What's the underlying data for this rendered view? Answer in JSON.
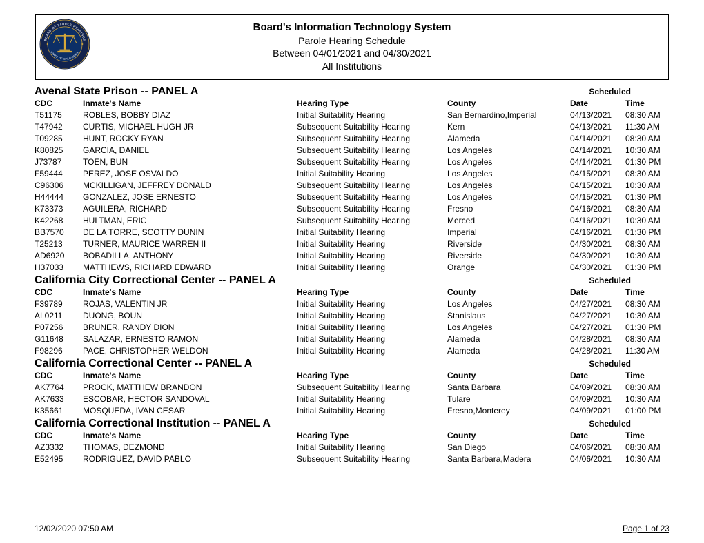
{
  "header": {
    "title": "Board's Information Technology System",
    "line1": "Parole Hearing Schedule",
    "line2": "Between 04/01/2021 and 04/30/2021",
    "line3": "All Institutions",
    "seal": {
      "outer_color": "#0b2a5b",
      "ring_color": "#12234e",
      "ring_text_top": "BOARD OF PAROLE HEARINGS",
      "ring_text_bottom": "STATE OF CALIFORNIA",
      "inner_color": "#0c2f66",
      "gold": "#d6a93a",
      "text_color": "#ffffff"
    }
  },
  "columns": {
    "cdc": "CDC",
    "name": "Inmate's Name",
    "type": "Hearing Type",
    "county": "County",
    "date": "Date",
    "time": "Time",
    "scheduled": "Scheduled"
  },
  "sections": [
    {
      "title": "Avenal State Prison -- PANEL A",
      "rows": [
        {
          "cdc": "T51175",
          "name": "ROBLES, BOBBY DIAZ",
          "type": "Initial Suitability Hearing",
          "county": "San Bernardino,Imperial",
          "date": "04/13/2021",
          "time": "08:30 AM"
        },
        {
          "cdc": "T47942",
          "name": "CURTIS, MICHAEL HUGH JR",
          "type": "Subsequent Suitability Hearing",
          "county": "Kern",
          "date": "04/13/2021",
          "time": "11:30 AM"
        },
        {
          "cdc": "T09285",
          "name": "HUNT, ROCKY RYAN",
          "type": "Subsequent Suitability Hearing",
          "county": "Alameda",
          "date": "04/14/2021",
          "time": "08:30 AM"
        },
        {
          "cdc": "K80825",
          "name": "GARCIA, DANIEL",
          "type": "Subsequent Suitability Hearing",
          "county": "Los Angeles",
          "date": "04/14/2021",
          "time": "10:30 AM"
        },
        {
          "cdc": "J73787",
          "name": "TOEN, BUN",
          "type": "Subsequent Suitability Hearing",
          "county": "Los Angeles",
          "date": "04/14/2021",
          "time": "01:30 PM"
        },
        {
          "cdc": "F59444",
          "name": "PEREZ, JOSE OSVALDO",
          "type": "Initial Suitability Hearing",
          "county": "Los Angeles",
          "date": "04/15/2021",
          "time": "08:30 AM"
        },
        {
          "cdc": "C96306",
          "name": "MCKILLIGAN, JEFFREY DONALD",
          "type": "Subsequent Suitability Hearing",
          "county": "Los Angeles",
          "date": "04/15/2021",
          "time": "10:30 AM"
        },
        {
          "cdc": "H44444",
          "name": "GONZALEZ, JOSE ERNESTO",
          "type": "Subsequent Suitability Hearing",
          "county": "Los Angeles",
          "date": "04/15/2021",
          "time": "01:30 PM"
        },
        {
          "cdc": "K73373",
          "name": "AGUILERA, RICHARD",
          "type": "Subsequent Suitability Hearing",
          "county": "Fresno",
          "date": "04/16/2021",
          "time": "08:30 AM"
        },
        {
          "cdc": "K42268",
          "name": "HULTMAN, ERIC",
          "type": "Subsequent Suitability Hearing",
          "county": "Merced",
          "date": "04/16/2021",
          "time": "10:30 AM"
        },
        {
          "cdc": "BB7570",
          "name": "DE LA TORRE, SCOTTY DUNIN",
          "type": "Initial Suitability Hearing",
          "county": "Imperial",
          "date": "04/16/2021",
          "time": "01:30 PM"
        },
        {
          "cdc": "T25213",
          "name": "TURNER, MAURICE WARREN II",
          "type": "Initial Suitability Hearing",
          "county": "Riverside",
          "date": "04/30/2021",
          "time": "08:30 AM"
        },
        {
          "cdc": "AD6920",
          "name": "BOBADILLA, ANTHONY",
          "type": "Initial Suitability Hearing",
          "county": "Riverside",
          "date": "04/30/2021",
          "time": "10:30 AM"
        },
        {
          "cdc": "H37033",
          "name": "MATTHEWS, RICHARD EDWARD",
          "type": "Initial Suitability Hearing",
          "county": "Orange",
          "date": "04/30/2021",
          "time": "01:30 PM"
        }
      ]
    },
    {
      "title": "California City Correctional Center -- PANEL A",
      "rows": [
        {
          "cdc": "F39789",
          "name": "ROJAS, VALENTIN JR",
          "type": "Initial Suitability Hearing",
          "county": "Los Angeles",
          "date": "04/27/2021",
          "time": "08:30 AM"
        },
        {
          "cdc": "AL0211",
          "name": "DUONG, BOUN",
          "type": "Initial Suitability Hearing",
          "county": "Stanislaus",
          "date": "04/27/2021",
          "time": "10:30 AM"
        },
        {
          "cdc": "P07256",
          "name": "BRUNER, RANDY DION",
          "type": "Initial Suitability Hearing",
          "county": "Los Angeles",
          "date": "04/27/2021",
          "time": "01:30 PM"
        },
        {
          "cdc": "G11648",
          "name": "SALAZAR, ERNESTO RAMON",
          "type": "Initial Suitability Hearing",
          "county": "Alameda",
          "date": "04/28/2021",
          "time": "08:30 AM"
        },
        {
          "cdc": "F98296",
          "name": "PACE, CHRISTOPHER WELDON",
          "type": "Initial Suitability Hearing",
          "county": "Alameda",
          "date": "04/28/2021",
          "time": "11:30 AM"
        }
      ]
    },
    {
      "title": "California Correctional Center -- PANEL A",
      "rows": [
        {
          "cdc": "AK7764",
          "name": "PROCK, MATTHEW BRANDON",
          "type": "Subsequent Suitability Hearing",
          "county": "Santa Barbara",
          "date": "04/09/2021",
          "time": "08:30 AM"
        },
        {
          "cdc": "AK7633",
          "name": "ESCOBAR, HECTOR SANDOVAL",
          "type": "Initial Suitability Hearing",
          "county": "Tulare",
          "date": "04/09/2021",
          "time": "10:30 AM"
        },
        {
          "cdc": "K35661",
          "name": "MOSQUEDA, IVAN CESAR",
          "type": "Initial Suitability Hearing",
          "county": "Fresno,Monterey",
          "date": "04/09/2021",
          "time": "01:00 PM"
        }
      ]
    },
    {
      "title": "California Correctional Institution -- PANEL A",
      "rows": [
        {
          "cdc": "AZ3332",
          "name": "THOMAS, DEZMOND",
          "type": "Initial Suitability Hearing",
          "county": "San Diego",
          "date": "04/06/2021",
          "time": "08:30 AM"
        },
        {
          "cdc": "E52495",
          "name": "RODRIGUEZ, DAVID PABLO",
          "type": "Subsequent Suitability Hearing",
          "county": "Santa Barbara,Madera",
          "date": "04/06/2021",
          "time": "10:30 AM"
        }
      ]
    }
  ],
  "footer": {
    "timestamp": "12/02/2020 07:50 AM",
    "page": "Page 1 of 23"
  },
  "style": {
    "page_bg": "#ffffff",
    "text_color": "#000000",
    "border_color": "#000000",
    "font_family": "Arial",
    "title_fontsize_pt": 11,
    "section_fontsize_pt": 12,
    "body_fontsize_pt": 9
  }
}
